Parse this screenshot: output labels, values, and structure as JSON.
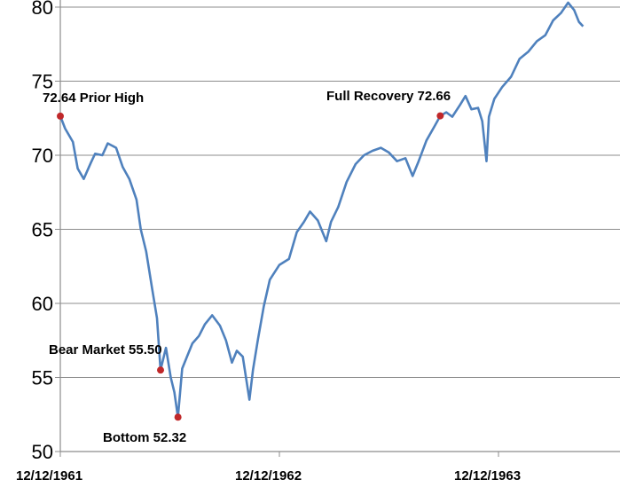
{
  "chart_data": {
    "type": "line",
    "title": "",
    "xlabel": "",
    "ylabel": "",
    "ylim": [
      50,
      80
    ],
    "yticks": [
      50,
      55,
      60,
      65,
      70,
      75,
      80
    ],
    "xticks": [
      {
        "date": "1961-12-12",
        "label": "12/12/1961"
      },
      {
        "date": "1962-12-12",
        "label": "12/12/1962"
      },
      {
        "date": "1963-12-12",
        "label": "12/12/1963"
      }
    ],
    "xlim": [
      "1961-12-12",
      "1964-05-01"
    ],
    "grid": "horizontal",
    "legend": "none",
    "series": [
      {
        "color": "#4f81bd",
        "points": [
          [
            "1961-12-12",
            72.64
          ],
          [
            "1961-12-20",
            71.8
          ],
          [
            "1962-01-02",
            70.9
          ],
          [
            "1962-01-10",
            69.1
          ],
          [
            "1962-01-20",
            68.4
          ],
          [
            "1962-02-01",
            69.5
          ],
          [
            "1962-02-08",
            70.1
          ],
          [
            "1962-02-20",
            70.0
          ],
          [
            "1962-03-01",
            70.8
          ],
          [
            "1962-03-15",
            70.5
          ],
          [
            "1962-03-26",
            69.2
          ],
          [
            "1962-04-06",
            68.4
          ],
          [
            "1962-04-18",
            67.0
          ],
          [
            "1962-04-25",
            65.0
          ],
          [
            "1962-05-04",
            63.5
          ],
          [
            "1962-05-14",
            61.0
          ],
          [
            "1962-05-22",
            59.0
          ],
          [
            "1962-05-28",
            55.5
          ],
          [
            "1962-06-06",
            57.0
          ],
          [
            "1962-06-14",
            55.0
          ],
          [
            "1962-06-20",
            54.0
          ],
          [
            "1962-06-26",
            52.32
          ],
          [
            "1962-07-03",
            55.6
          ],
          [
            "1962-07-12",
            56.5
          ],
          [
            "1962-07-20",
            57.3
          ],
          [
            "1962-07-31",
            57.8
          ],
          [
            "1962-08-10",
            58.6
          ],
          [
            "1962-08-22",
            59.2
          ],
          [
            "1962-09-04",
            58.5
          ],
          [
            "1962-09-14",
            57.5
          ],
          [
            "1962-09-24",
            56.0
          ],
          [
            "1962-10-02",
            56.8
          ],
          [
            "1962-10-12",
            56.4
          ],
          [
            "1962-10-23",
            53.5
          ],
          [
            "1962-10-29",
            55.5
          ],
          [
            "1962-11-06",
            57.5
          ],
          [
            "1962-11-16",
            59.8
          ],
          [
            "1962-11-26",
            61.6
          ],
          [
            "1962-12-12",
            62.6
          ],
          [
            "1962-12-28",
            63.0
          ],
          [
            "1963-01-10",
            64.8
          ],
          [
            "1963-01-22",
            65.5
          ],
          [
            "1963-02-01",
            66.2
          ],
          [
            "1963-02-14",
            65.6
          ],
          [
            "1963-02-28",
            64.2
          ],
          [
            "1963-03-08",
            65.5
          ],
          [
            "1963-03-20",
            66.5
          ],
          [
            "1963-04-03",
            68.2
          ],
          [
            "1963-04-18",
            69.4
          ],
          [
            "1963-05-02",
            70.0
          ],
          [
            "1963-05-16",
            70.3
          ],
          [
            "1963-05-30",
            70.5
          ],
          [
            "1963-06-12",
            70.2
          ],
          [
            "1963-06-26",
            69.6
          ],
          [
            "1963-07-10",
            69.8
          ],
          [
            "1963-07-22",
            68.6
          ],
          [
            "1963-08-01",
            69.6
          ],
          [
            "1963-08-14",
            71.0
          ],
          [
            "1963-08-28",
            72.0
          ],
          [
            "1963-09-06",
            72.66
          ],
          [
            "1963-09-16",
            72.9
          ],
          [
            "1963-09-26",
            72.6
          ],
          [
            "1963-10-09",
            73.4
          ],
          [
            "1963-10-18",
            74.0
          ],
          [
            "1963-10-28",
            73.1
          ],
          [
            "1963-11-08",
            73.2
          ],
          [
            "1963-11-15",
            72.3
          ],
          [
            "1963-11-22",
            69.6
          ],
          [
            "1963-11-26",
            72.6
          ],
          [
            "1963-12-05",
            73.8
          ],
          [
            "1963-12-18",
            74.6
          ],
          [
            "1964-01-02",
            75.3
          ],
          [
            "1964-01-16",
            76.5
          ],
          [
            "1964-01-31",
            77.0
          ],
          [
            "1964-02-14",
            77.7
          ],
          [
            "1964-02-28",
            78.1
          ],
          [
            "1964-03-12",
            79.1
          ],
          [
            "1964-03-25",
            79.6
          ],
          [
            "1964-04-06",
            80.3
          ],
          [
            "1964-04-16",
            79.8
          ],
          [
            "1964-04-24",
            79.0
          ],
          [
            "1964-05-01",
            78.7
          ]
        ]
      }
    ],
    "annotations": [
      {
        "label_name": "72.64",
        "desc": "Prior High",
        "date": "1961-12-12",
        "value": 72.64,
        "marker_color": "#c0282a"
      },
      {
        "label_name": "Bear Market",
        "desc": "55.50",
        "date": "1962-05-28",
        "value": 55.5,
        "marker_color": "#c0282a"
      },
      {
        "label_name": "Bottom",
        "desc": "52.32",
        "date": "1962-06-26",
        "value": 52.32,
        "marker_color": "#c0282a"
      },
      {
        "label_name": "Full Recovery",
        "desc": "72.66",
        "date": "1963-09-06",
        "value": 72.66,
        "marker_color": "#c0282a"
      }
    ],
    "annotation_text": {
      "prior_high": "72.64  Prior High",
      "bear_market": "Bear Market 55.50",
      "bottom": "Bottom 52.32",
      "full_recovery": "Full Recovery 72.66"
    }
  }
}
